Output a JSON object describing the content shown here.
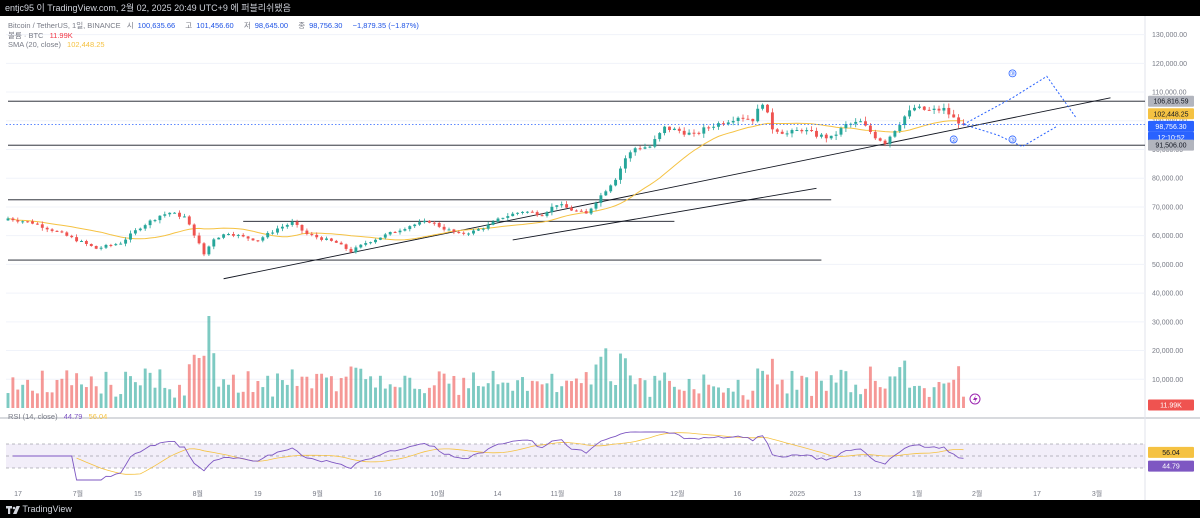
{
  "topbar": {
    "text": "entjc95 이 TradingView.com, 2월 02, 2025 20:49 UTC+9 에 퍼블리쉬됐음"
  },
  "legend": {
    "symbol": "Bitcoin / TetherUS, 1일, BINANCE",
    "open_label": "시",
    "open": "100,635.66",
    "high_label": "고",
    "high": "101,456.60",
    "low_label": "저",
    "low": "98,645.00",
    "close_label": "종",
    "close": "98,756.30",
    "change": "−1,879.35 (−1.87%)",
    "volume_label": "볼륨 · BTC",
    "volume": "11.99K",
    "sma_label": "SMA (20, close)",
    "sma": "102,448.25",
    "rsi_label": "RSI (14, close)",
    "rsi": "44.79",
    "rsi_ma": "56.04"
  },
  "price_badges": {
    "resistance": "106,816.59",
    "sma": "102,448.25",
    "last": "98,756.30",
    "countdown": "12:10:52",
    "support": "91,506.00",
    "volume": "11.99K",
    "rsi_ma": "56.04",
    "rsi": "44.79"
  },
  "wave_labels": [
    "③",
    "②",
    "③",
    "②"
  ],
  "footer": {
    "brand": "TradingView"
  },
  "colors": {
    "up": "#26a69a",
    "down": "#ef5350",
    "sma": "#f5c242",
    "rsi": "#7e57c2",
    "last": "#2962ff"
  },
  "chart_data": {
    "type": "candlestick",
    "title": "Bitcoin / TetherUS, 1일, BINANCE",
    "x_ticks": [
      "17",
      "7월",
      "15",
      "8월",
      "19",
      "9월",
      "16",
      "10월",
      "14",
      "11월",
      "18",
      "12월",
      "16",
      "2025",
      "13",
      "1월",
      "2월",
      "17",
      "3월"
    ],
    "y_ticks": [
      "130,000.00",
      "120,000.00",
      "110,000.00",
      "100,000.00",
      "90,000.00",
      "80,000.00",
      "70,000.00",
      "60,000.00",
      "50,000.00",
      "40,000.00",
      "30,000.00",
      "20,000.00",
      "10,000.00"
    ],
    "ylim": [
      0,
      133000
    ],
    "anchor_closes": [
      [
        0,
        66000
      ],
      [
        5,
        64500
      ],
      [
        9,
        62000
      ],
      [
        14,
        58500
      ],
      [
        18,
        55500
      ],
      [
        23,
        57500
      ],
      [
        27,
        63000
      ],
      [
        31,
        67000
      ],
      [
        33,
        68000
      ],
      [
        36,
        66500
      ],
      [
        38,
        60500
      ],
      [
        40,
        53500
      ],
      [
        42,
        59000
      ],
      [
        45,
        61000
      ],
      [
        48,
        59500
      ],
      [
        51,
        58500
      ],
      [
        55,
        62500
      ],
      [
        58,
        64500
      ],
      [
        61,
        60500
      ],
      [
        64,
        59000
      ],
      [
        67,
        57500
      ],
      [
        70,
        54500
      ],
      [
        73,
        57500
      ],
      [
        76,
        59500
      ],
      [
        79,
        61500
      ],
      [
        82,
        63500
      ],
      [
        86,
        65000
      ],
      [
        89,
        62500
      ],
      [
        92,
        60500
      ],
      [
        95,
        61500
      ],
      [
        98,
        63500
      ],
      [
        101,
        66500
      ],
      [
        105,
        68500
      ],
      [
        109,
        67500
      ],
      [
        112,
        71000
      ],
      [
        115,
        69000
      ],
      [
        118,
        67500
      ],
      [
        120,
        72000
      ],
      [
        122,
        76000
      ],
      [
        124,
        80000
      ],
      [
        126,
        87000
      ],
      [
        128,
        90500
      ],
      [
        131,
        91000
      ],
      [
        134,
        97500
      ],
      [
        137,
        96500
      ],
      [
        140,
        95000
      ],
      [
        142,
        97000
      ],
      [
        144,
        98500
      ],
      [
        146,
        99500
      ],
      [
        149,
        101500
      ],
      [
        152,
        100500
      ],
      [
        154,
        106500
      ],
      [
        156,
        97500
      ],
      [
        159,
        95500
      ],
      [
        162,
        97000
      ],
      [
        165,
        95000
      ],
      [
        168,
        94000
      ],
      [
        171,
        98500
      ],
      [
        174,
        99500
      ],
      [
        177,
        94500
      ],
      [
        179,
        92500
      ],
      [
        181,
        97000
      ],
      [
        183,
        101500
      ],
      [
        185,
        104500
      ],
      [
        188,
        103500
      ],
      [
        191,
        104000
      ],
      [
        193,
        100800
      ],
      [
        195,
        98756
      ]
    ],
    "volume_peak_k": 37,
    "rsi_range": [
      0,
      100
    ],
    "rsi_bands": [
      70,
      50,
      30
    ],
    "horizontal_levels": [
      {
        "price": 106816.59,
        "from_index": 0,
        "to_index": 235
      },
      {
        "price": 91506,
        "from_index": 0,
        "to_index": 235
      },
      {
        "price": 72500,
        "from_index": 0,
        "to_index": 168
      },
      {
        "price": 65000,
        "from_index": 48,
        "to_index": 136
      },
      {
        "price": 51500,
        "from_index": 0,
        "to_index": 166
      }
    ],
    "trendlines": [
      {
        "from": [
          44,
          45000
        ],
        "to": [
          225,
          108000
        ]
      },
      {
        "from": [
          103,
          58500
        ],
        "to": [
          165,
          76500
        ]
      }
    ],
    "projection": {
      "up_path": [
        [
          195,
          98756
        ],
        [
          205,
          108000
        ],
        [
          212,
          115500
        ],
        [
          218,
          101000
        ]
      ],
      "down_path": [
        [
          195,
          98756
        ],
        [
          202,
          95000
        ],
        [
          207,
          91000
        ],
        [
          214,
          98000
        ]
      ]
    },
    "last": 98756.3,
    "sma_last": 102448.25
  }
}
